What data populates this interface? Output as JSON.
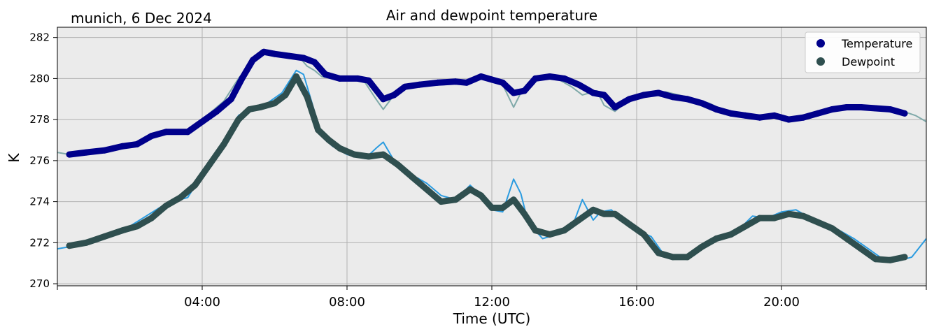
{
  "chart_data": {
    "type": "line",
    "title": "Air and dewpoint temperature",
    "subtitle": "munich, 6 Dec 2024",
    "xlabel": "Time (UTC)",
    "ylabel": "K",
    "x_unit": "hours (UTC) on 6 Dec 2024",
    "xlim": [
      0,
      24
    ],
    "ylim": [
      269.9,
      282.5
    ],
    "x_ticks": [
      {
        "value": 4,
        "label": "04:00"
      },
      {
        "value": 8,
        "label": "08:00"
      },
      {
        "value": 12,
        "label": "12:00"
      },
      {
        "value": 16,
        "label": "16:00"
      },
      {
        "value": 20,
        "label": "20:00"
      }
    ],
    "y_ticks": [
      {
        "value": 270,
        "label": "270"
      },
      {
        "value": 272,
        "label": "272"
      },
      {
        "value": 274,
        "label": "274"
      },
      {
        "value": 276,
        "label": "276"
      },
      {
        "value": 278,
        "label": "278"
      },
      {
        "value": 280,
        "label": "280"
      },
      {
        "value": 282,
        "label": "282"
      }
    ],
    "grid": true,
    "legend_position": "top-right",
    "legend": [
      {
        "name": "Temperature",
        "color": "#00008b"
      },
      {
        "name": "Dewpoint",
        "color": "#2f4f4f"
      }
    ],
    "colors": {
      "plot_background": "#ebebeb",
      "grid": "#b0b0b0",
      "temperature_smooth": "#00008b",
      "dewpoint_smooth": "#2f4f4f",
      "temperature_raw": "#7fa9a9",
      "dewpoint_raw": "#2a9be0"
    },
    "series": [
      {
        "name": "Temperature",
        "style": "thick-markers",
        "x": [
          0.33,
          0.8,
          1.3,
          1.8,
          2.2,
          2.6,
          3.0,
          3.6,
          4.0,
          4.4,
          4.8,
          5.1,
          5.4,
          5.7,
          6.0,
          6.4,
          6.8,
          7.1,
          7.4,
          7.8,
          8.3,
          8.6,
          9.0,
          9.3,
          9.6,
          10.0,
          10.5,
          11.0,
          11.3,
          11.7,
          12.0,
          12.3,
          12.6,
          12.9,
          13.2,
          13.6,
          14.0,
          14.4,
          14.8,
          15.1,
          15.4,
          15.8,
          16.2,
          16.6,
          17.0,
          17.4,
          17.8,
          18.2,
          18.6,
          19.0,
          19.4,
          19.8,
          20.2,
          20.6,
          21.0,
          21.4,
          21.8,
          22.2,
          22.6,
          23.0,
          23.4
        ],
        "values": [
          276.3,
          276.4,
          276.5,
          276.7,
          276.8,
          277.2,
          277.4,
          277.4,
          277.9,
          278.4,
          279.0,
          280.0,
          280.9,
          281.3,
          281.2,
          281.1,
          281.0,
          280.8,
          280.2,
          280.0,
          280.0,
          279.9,
          279.0,
          279.2,
          279.6,
          279.7,
          279.8,
          279.85,
          279.8,
          280.1,
          279.95,
          279.8,
          279.3,
          279.4,
          280.0,
          280.1,
          280.0,
          279.7,
          279.3,
          279.2,
          278.6,
          279.0,
          279.2,
          279.3,
          279.1,
          279.0,
          278.8,
          278.5,
          278.3,
          278.2,
          278.1,
          278.2,
          278.0,
          278.1,
          278.3,
          278.5,
          278.6,
          278.6,
          278.55,
          278.5,
          278.3
        ]
      },
      {
        "name": "Dewpoint",
        "style": "thick-markers",
        "x": [
          0.33,
          0.8,
          1.3,
          1.8,
          2.2,
          2.6,
          3.0,
          3.4,
          3.8,
          4.2,
          4.6,
          5.0,
          5.3,
          5.6,
          6.0,
          6.3,
          6.6,
          6.9,
          7.2,
          7.5,
          7.8,
          8.2,
          8.6,
          9.0,
          9.4,
          9.8,
          10.2,
          10.6,
          11.0,
          11.4,
          11.7,
          12.0,
          12.3,
          12.6,
          12.9,
          13.2,
          13.6,
          14.0,
          14.4,
          14.8,
          15.1,
          15.4,
          15.8,
          16.2,
          16.6,
          17.0,
          17.4,
          17.8,
          18.2,
          18.6,
          19.0,
          19.4,
          19.8,
          20.2,
          20.6,
          21.0,
          21.4,
          21.8,
          22.2,
          22.6,
          23.0,
          23.4
        ],
        "values": [
          271.85,
          272.0,
          272.3,
          272.6,
          272.8,
          273.2,
          273.8,
          274.2,
          274.8,
          275.8,
          276.8,
          278.0,
          278.5,
          278.6,
          278.8,
          279.2,
          280.1,
          279.1,
          277.5,
          277.0,
          276.6,
          276.3,
          276.2,
          276.3,
          275.8,
          275.2,
          274.6,
          274.0,
          274.1,
          274.6,
          274.3,
          273.7,
          273.7,
          274.1,
          273.4,
          272.6,
          272.4,
          272.6,
          273.1,
          273.6,
          273.4,
          273.4,
          272.9,
          272.4,
          271.5,
          271.3,
          271.3,
          271.8,
          272.2,
          272.4,
          272.8,
          273.2,
          273.2,
          273.4,
          273.3,
          273.0,
          272.7,
          272.2,
          271.7,
          271.2,
          271.15,
          271.3
        ]
      },
      {
        "name": "",
        "style": "raw-thin",
        "x": [
          0,
          0.33,
          1.0,
          2.0,
          3.0,
          3.6,
          4.2,
          4.6,
          5.0,
          5.4,
          5.7,
          6.0,
          6.4,
          6.7,
          6.9,
          7.1,
          7.3,
          7.6,
          8.0,
          8.5,
          8.8,
          9.0,
          9.3,
          9.6,
          10.0,
          10.5,
          11.0,
          11.4,
          11.7,
          12.0,
          12.3,
          12.6,
          12.8,
          13.0,
          13.4,
          13.8,
          14.2,
          14.5,
          14.9,
          15.1,
          15.4,
          15.8,
          16.2,
          16.8,
          17.4,
          18.0,
          18.6,
          19.2,
          19.8,
          20.2,
          20.8,
          21.4,
          22.0,
          22.6,
          23.2,
          23.7,
          24.0
        ],
        "values": [
          276.4,
          276.3,
          276.45,
          276.7,
          277.4,
          277.4,
          278.3,
          278.9,
          280.0,
          280.9,
          281.4,
          281.3,
          281.1,
          281.0,
          280.6,
          280.4,
          280.1,
          280.0,
          280.0,
          279.8,
          279.0,
          278.5,
          279.2,
          279.6,
          279.7,
          279.8,
          279.85,
          279.8,
          280.2,
          279.9,
          279.7,
          278.6,
          279.3,
          279.6,
          280.1,
          280.0,
          279.6,
          279.2,
          279.4,
          278.7,
          278.4,
          279.0,
          279.3,
          279.35,
          279.1,
          278.8,
          278.3,
          278.2,
          278.2,
          278.0,
          278.2,
          278.6,
          278.6,
          278.55,
          278.5,
          278.2,
          277.9
        ]
      },
      {
        "name": "",
        "style": "raw-thin",
        "x": [
          0,
          0.33,
          1.0,
          2.0,
          3.0,
          3.6,
          4.2,
          4.6,
          5.0,
          5.4,
          5.8,
          6.2,
          6.6,
          6.8,
          7.0,
          7.3,
          7.6,
          8.0,
          8.5,
          8.8,
          9.0,
          9.3,
          9.7,
          10.2,
          10.6,
          11.0,
          11.4,
          11.7,
          12.0,
          12.3,
          12.6,
          12.8,
          13.0,
          13.4,
          13.8,
          14.2,
          14.5,
          14.8,
          15.0,
          15.3,
          15.6,
          16.0,
          16.4,
          16.8,
          17.2,
          17.6,
          18.0,
          18.4,
          18.8,
          19.2,
          19.6,
          20.0,
          20.4,
          20.8,
          21.2,
          21.6,
          22.0,
          22.4,
          22.8,
          23.2,
          23.6,
          24.0
        ],
        "values": [
          271.7,
          271.8,
          272.1,
          272.8,
          273.9,
          274.2,
          275.9,
          276.9,
          278.2,
          278.6,
          278.8,
          279.3,
          280.4,
          280.2,
          279.0,
          277.2,
          276.7,
          276.3,
          276.1,
          276.6,
          276.9,
          276.0,
          275.4,
          274.9,
          274.3,
          274.1,
          274.8,
          274.3,
          273.6,
          273.5,
          275.1,
          274.4,
          273.0,
          272.2,
          272.4,
          272.7,
          274.1,
          273.1,
          273.5,
          273.6,
          273.1,
          272.6,
          272.3,
          271.3,
          271.2,
          271.4,
          272.0,
          272.3,
          272.6,
          273.3,
          273.2,
          273.5,
          273.6,
          273.2,
          272.9,
          272.6,
          272.2,
          271.7,
          271.2,
          271.1,
          271.3,
          272.2
        ]
      }
    ]
  }
}
